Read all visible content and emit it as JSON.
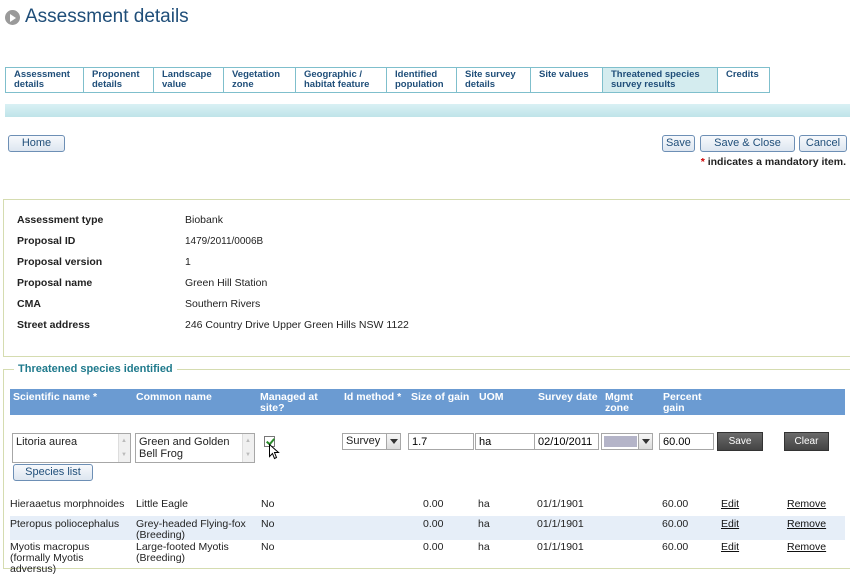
{
  "page": {
    "title": "Assessment details"
  },
  "tabs": [
    {
      "label": "Assessment details",
      "active": false
    },
    {
      "label": "Proponent details",
      "active": false
    },
    {
      "label": "Landscape value",
      "active": false
    },
    {
      "label": "Vegetation zone",
      "active": false
    },
    {
      "label": "Geographic / habitat feature",
      "active": false
    },
    {
      "label": "Identified population",
      "active": false
    },
    {
      "label": "Site survey details",
      "active": false
    },
    {
      "label": "Site values",
      "active": false
    },
    {
      "label": "Threatened species survey results",
      "active": true
    },
    {
      "label": "Credits",
      "active": false
    }
  ],
  "toolbar": {
    "home_label": "Home",
    "save_label": "Save",
    "save_close_label": "Save & Close",
    "cancel_label": "Cancel",
    "mandatory_star": "*",
    "mandatory_note": " indicates a mandatory item."
  },
  "details": {
    "assessment_type": {
      "label": "Assessment type",
      "value": "Biobank"
    },
    "proposal_id": {
      "label": "Proposal ID",
      "value": "1479/2011/0006B"
    },
    "proposal_version": {
      "label": "Proposal version",
      "value": "1"
    },
    "proposal_name": {
      "label": "Proposal name",
      "value": "Green Hill Station"
    },
    "cma": {
      "label": "CMA",
      "value": "Southern Rivers"
    },
    "street_address": {
      "label": "Street address",
      "value": "246 Country Drive Upper Green Hills NSW 1122"
    }
  },
  "species": {
    "legend": "Threatened species identified",
    "columns": {
      "scientific_name": "Scientific name *",
      "common_name": "Common name",
      "managed": "Managed at site?",
      "id_method": "Id method *",
      "size_of_gain": "Size of gain",
      "uom": "UOM",
      "survey_date": "Survey date",
      "mgmt_zone": "Mgmt zone",
      "percent_gain": "Percent gain"
    },
    "form": {
      "scientific_name": "Litoria aurea",
      "common_name": "Green and Golden Bell Frog",
      "managed_checked": true,
      "id_method": "Survey",
      "size_of_gain": "1.7",
      "uom": "ha",
      "survey_date": "02/10/2011",
      "mgmt_zone": "",
      "percent_gain": "60.00",
      "save_label": "Save",
      "clear_label": "Clear",
      "species_list_label": "Species list"
    },
    "rows": [
      {
        "scientific": "Hieraaetus morphnoides",
        "common": "Little Eagle",
        "managed": "No",
        "size": "0.00",
        "uom": "ha",
        "date": "01/1/1901",
        "percent": "60.00",
        "edit": "Edit",
        "remove": "Remove"
      },
      {
        "scientific": "Pteropus poliocephalus",
        "common": "Grey-headed Flying-fox (Breeding)",
        "managed": "No",
        "size": "0.00",
        "uom": "ha",
        "date": "01/1/1901",
        "percent": "60.00",
        "edit": "Edit",
        "remove": "Remove"
      },
      {
        "scientific": "Myotis macropus (formally Myotis adversus)",
        "common": "Large-footed Myotis (Breeding)",
        "managed": "No",
        "size": "0.00",
        "uom": "ha",
        "date": "01/1/1901",
        "percent": "60.00",
        "edit": "Edit",
        "remove": "Remove"
      }
    ]
  }
}
